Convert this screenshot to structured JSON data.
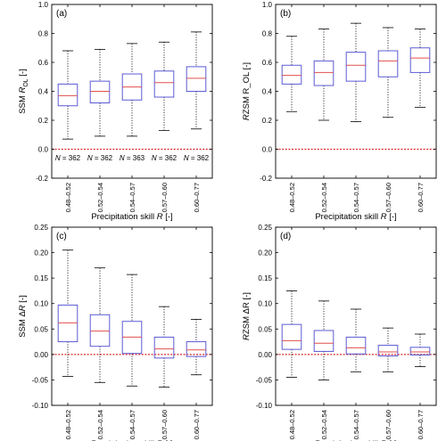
{
  "chart_data": [
    {
      "type": "box",
      "panel_label": "(a)",
      "ylabel": "SSM R_OL [-]",
      "xlabel": "Precipitation skill R [-]",
      "ylim": [
        -0.2,
        1.0
      ],
      "yticks": [
        "-0.2",
        "0.0",
        "0.2",
        "0.4",
        "0.6",
        "0.8",
        "1.0"
      ],
      "categories": [
        "0.48–0.52",
        "0.52–0.54",
        "0.54–0.57",
        "0.57–0.60",
        "0.60–0.77"
      ],
      "reference_line": 0,
      "annotations": [
        "N = 362",
        "N = 362",
        "N = 363",
        "N = 362",
        "N = 362"
      ],
      "boxes": [
        {
          "min": 0.07,
          "q1": 0.3,
          "median": 0.37,
          "q3": 0.45,
          "max": 0.68
        },
        {
          "min": 0.09,
          "q1": 0.32,
          "median": 0.4,
          "q3": 0.47,
          "max": 0.69
        },
        {
          "min": 0.09,
          "q1": 0.34,
          "median": 0.43,
          "q3": 0.52,
          "max": 0.73
        },
        {
          "min": 0.13,
          "q1": 0.36,
          "median": 0.46,
          "q3": 0.54,
          "max": 0.74
        },
        {
          "min": 0.14,
          "q1": 0.4,
          "median": 0.49,
          "q3": 0.57,
          "max": 0.81
        }
      ]
    },
    {
      "type": "box",
      "panel_label": "(b)",
      "ylabel": "RZSM R_OL [-]",
      "xlabel": "Precipitation skill R [-]",
      "ylim": [
        -0.2,
        1.0
      ],
      "yticks": [
        "-0.2",
        "0.0",
        "0.2",
        "0.4",
        "0.6",
        "0.8",
        "1.0"
      ],
      "categories": [
        "0.48–0.52",
        "0.52–0.54",
        "0.54–0.57",
        "0.57–0.60",
        "0.60–0.77"
      ],
      "reference_line": 0,
      "annotations": [],
      "boxes": [
        {
          "min": 0.26,
          "q1": 0.45,
          "median": 0.51,
          "q3": 0.58,
          "max": 0.78
        },
        {
          "min": 0.2,
          "q1": 0.44,
          "median": 0.53,
          "q3": 0.61,
          "max": 0.83
        },
        {
          "min": 0.19,
          "q1": 0.47,
          "median": 0.58,
          "q3": 0.67,
          "max": 0.87
        },
        {
          "min": 0.22,
          "q1": 0.5,
          "median": 0.61,
          "q3": 0.68,
          "max": 0.84
        },
        {
          "min": 0.29,
          "q1": 0.53,
          "median": 0.63,
          "q3": 0.7,
          "max": 0.83
        }
      ]
    },
    {
      "type": "box",
      "panel_label": "(c)",
      "ylabel": "SSM ΔR [-]",
      "xlabel": "Precipitation skill R [-]",
      "ylim": [
        -0.1,
        0.25
      ],
      "yticks": [
        "-0.10",
        "-0.05",
        "0.00",
        "0.05",
        "0.10",
        "0.15",
        "0.20",
        "0.25"
      ],
      "categories": [
        "0.48–0.52",
        "0.52–0.54",
        "0.54–0.57",
        "0.57–0.60",
        "0.60–0.77"
      ],
      "reference_line": 0,
      "annotations": [],
      "boxes": [
        {
          "min": -0.043,
          "q1": 0.025,
          "median": 0.062,
          "q3": 0.097,
          "max": 0.205
        },
        {
          "min": -0.055,
          "q1": 0.016,
          "median": 0.046,
          "q3": 0.078,
          "max": 0.17
        },
        {
          "min": -0.062,
          "q1": 0.002,
          "median": 0.034,
          "q3": 0.065,
          "max": 0.157
        },
        {
          "min": -0.064,
          "q1": -0.007,
          "median": 0.011,
          "q3": 0.034,
          "max": 0.094
        },
        {
          "min": -0.04,
          "q1": -0.004,
          "median": 0.009,
          "q3": 0.025,
          "max": 0.069
        }
      ]
    },
    {
      "type": "box",
      "panel_label": "(d)",
      "ylabel": "RZSM ΔR [-]",
      "xlabel": "Precipitation skill R [-]",
      "ylim": [
        -0.1,
        0.25
      ],
      "yticks": [
        "-0.10",
        "-0.05",
        "0.00",
        "0.05",
        "0.10",
        "0.15",
        "0.20",
        "0.25"
      ],
      "categories": [
        "0.48–0.52",
        "0.52–0.54",
        "0.54–0.57",
        "0.57–0.60",
        "0.60–0.77"
      ],
      "reference_line": 0,
      "annotations": [],
      "boxes": [
        {
          "min": -0.045,
          "q1": 0.01,
          "median": 0.027,
          "q3": 0.059,
          "max": 0.125
        },
        {
          "min": -0.05,
          "q1": 0.006,
          "median": 0.022,
          "q3": 0.047,
          "max": 0.105
        },
        {
          "min": -0.034,
          "q1": 0.001,
          "median": 0.013,
          "q3": 0.034,
          "max": 0.089
        },
        {
          "min": -0.034,
          "q1": -0.003,
          "median": 0.005,
          "q3": 0.018,
          "max": 0.052
        },
        {
          "min": -0.024,
          "q1": -0.001,
          "median": 0.005,
          "q3": 0.014,
          "max": 0.04
        }
      ]
    }
  ],
  "colors": {
    "box": "#5b5bd6",
    "median": "#e0504d",
    "reference_line": "#d62728",
    "whisker": "#000000"
  }
}
